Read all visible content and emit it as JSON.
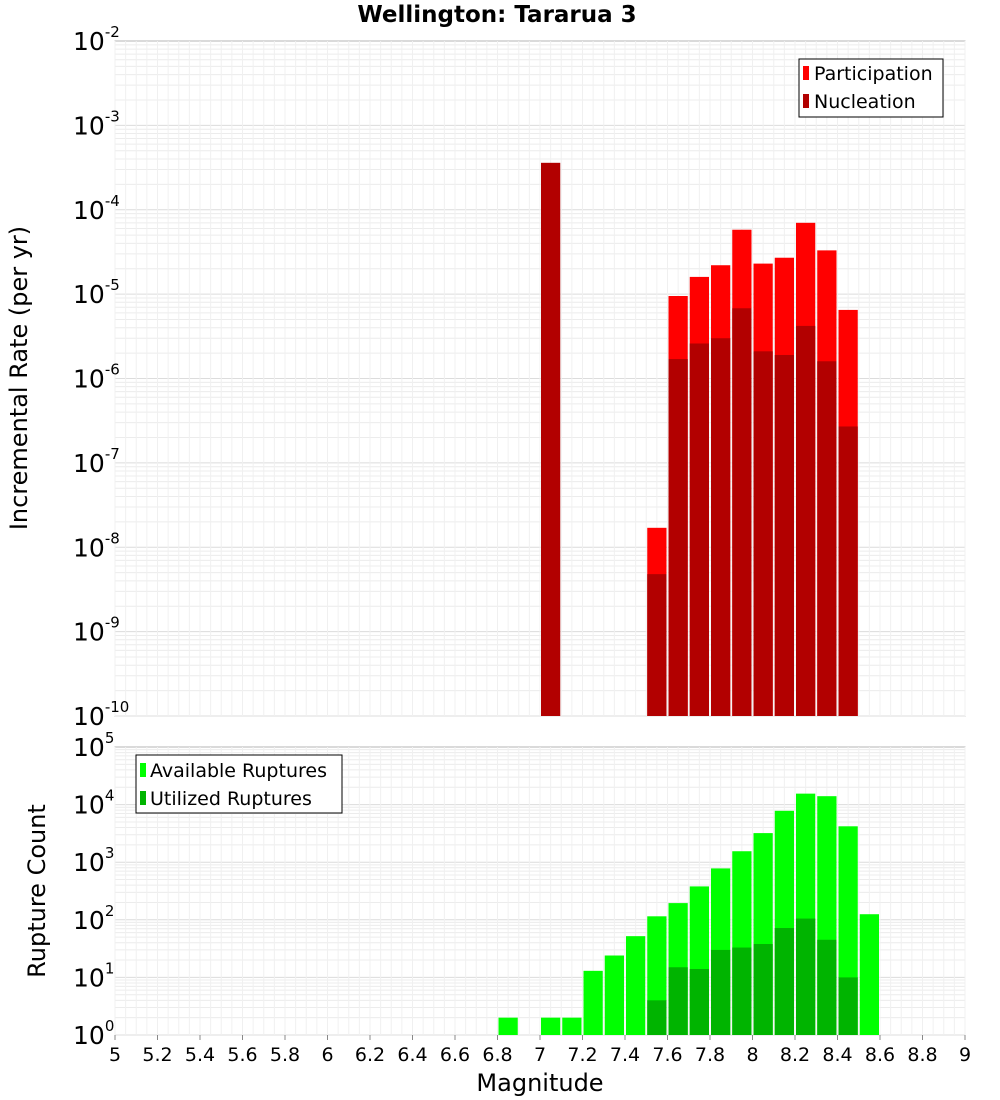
{
  "chart_data": [
    {
      "type": "bar",
      "title": "Wellington: Tararua 3",
      "xlabel": "Magnitude",
      "ylabel": "Incremental Rate (per yr)",
      "yscale": "log",
      "ylim_exp": [
        -10,
        -2
      ],
      "xlim": [
        5,
        9
      ],
      "bin_width": 0.1,
      "legend_position": "top-right",
      "series": [
        {
          "name": "Participation",
          "color": "#ff0000",
          "points": [
            {
              "x": 7.55,
              "y": 1.7e-08
            },
            {
              "x": 7.65,
              "y": 9.5e-06
            },
            {
              "x": 7.75,
              "y": 1.6e-05
            },
            {
              "x": 7.85,
              "y": 2.2e-05
            },
            {
              "x": 7.95,
              "y": 5.8e-05
            },
            {
              "x": 8.05,
              "y": 2.3e-05
            },
            {
              "x": 8.15,
              "y": 2.7e-05
            },
            {
              "x": 8.25,
              "y": 7e-05
            },
            {
              "x": 8.35,
              "y": 3.3e-05
            },
            {
              "x": 8.45,
              "y": 6.5e-06
            }
          ]
        },
        {
          "name": "Nucleation",
          "color": "#b20000",
          "points": [
            {
              "x": 7.05,
              "y": 0.00036
            },
            {
              "x": 7.55,
              "y": 4.8e-09
            },
            {
              "x": 7.65,
              "y": 1.7e-06
            },
            {
              "x": 7.75,
              "y": 2.6e-06
            },
            {
              "x": 7.85,
              "y": 3e-06
            },
            {
              "x": 7.95,
              "y": 6.8e-06
            },
            {
              "x": 8.05,
              "y": 2.1e-06
            },
            {
              "x": 8.15,
              "y": 1.9e-06
            },
            {
              "x": 8.25,
              "y": 4.2e-06
            },
            {
              "x": 8.35,
              "y": 1.6e-06
            },
            {
              "x": 8.45,
              "y": 2.7e-07
            }
          ]
        }
      ]
    },
    {
      "type": "bar",
      "title": "",
      "xlabel": "Magnitude",
      "ylabel": "Rupture Count",
      "yscale": "log",
      "ylim_exp": [
        0,
        5
      ],
      "xlim": [
        5,
        9
      ],
      "bin_width": 0.1,
      "legend_position": "top-left",
      "series": [
        {
          "name": "Available Ruptures",
          "color": "#00ff00",
          "points": [
            {
              "x": 6.85,
              "y": 2
            },
            {
              "x": 7.05,
              "y": 2
            },
            {
              "x": 7.15,
              "y": 2
            },
            {
              "x": 7.25,
              "y": 13
            },
            {
              "x": 7.35,
              "y": 24
            },
            {
              "x": 7.45,
              "y": 52
            },
            {
              "x": 7.55,
              "y": 115
            },
            {
              "x": 7.65,
              "y": 195
            },
            {
              "x": 7.75,
              "y": 380
            },
            {
              "x": 7.85,
              "y": 780
            },
            {
              "x": 7.95,
              "y": 1550
            },
            {
              "x": 8.05,
              "y": 3200
            },
            {
              "x": 8.15,
              "y": 7800
            },
            {
              "x": 8.25,
              "y": 15500
            },
            {
              "x": 8.35,
              "y": 14000
            },
            {
              "x": 8.45,
              "y": 4200
            },
            {
              "x": 8.55,
              "y": 125
            }
          ]
        },
        {
          "name": "Utilized Ruptures",
          "color": "#00b400",
          "points": [
            {
              "x": 7.05,
              "y": 1
            },
            {
              "x": 7.35,
              "y": 1
            },
            {
              "x": 7.55,
              "y": 4
            },
            {
              "x": 7.65,
              "y": 15
            },
            {
              "x": 7.75,
              "y": 14
            },
            {
              "x": 7.85,
              "y": 30
            },
            {
              "x": 7.95,
              "y": 33
            },
            {
              "x": 8.05,
              "y": 38
            },
            {
              "x": 8.15,
              "y": 72
            },
            {
              "x": 8.25,
              "y": 105
            },
            {
              "x": 8.35,
              "y": 45
            },
            {
              "x": 8.45,
              "y": 10
            }
          ]
        }
      ]
    }
  ],
  "x_ticks": [
    "5",
    "5.2",
    "5.4",
    "5.6",
    "5.8",
    "6",
    "6.2",
    "6.4",
    "6.6",
    "6.8",
    "7",
    "7.2",
    "7.4",
    "7.6",
    "7.8",
    "8",
    "8.2",
    "8.4",
    "8.6",
    "8.8",
    "9"
  ]
}
